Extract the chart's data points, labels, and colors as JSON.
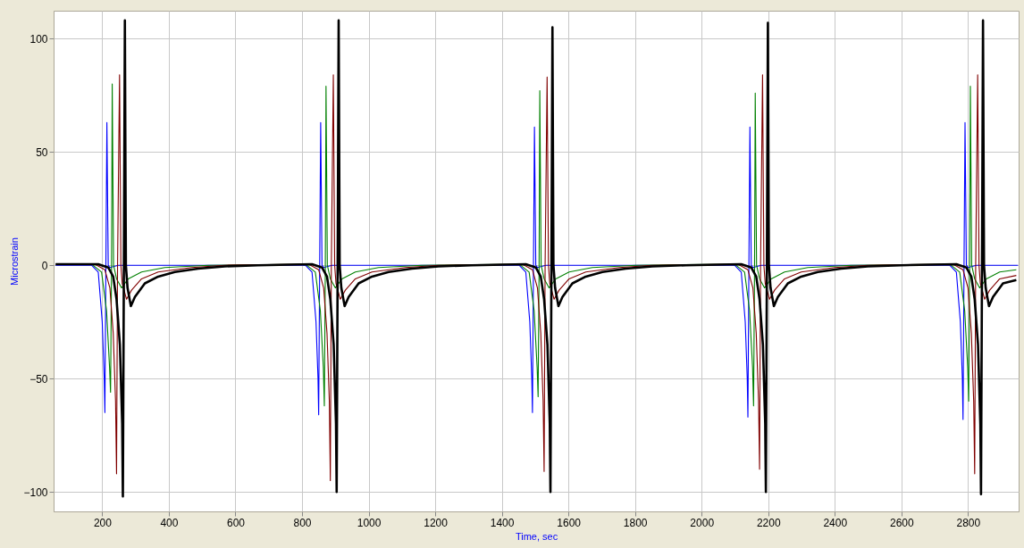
{
  "chart_data": {
    "type": "line",
    "xlabel": "Time, sec",
    "ylabel": "Microstrain",
    "xlim": [
      54,
      2952
    ],
    "ylim": [
      -108.6,
      112.3
    ],
    "xticks": [
      200,
      400,
      600,
      800,
      1000,
      1200,
      1400,
      1600,
      1800,
      2000,
      2200,
      2400,
      2600,
      2800
    ],
    "yticks": [
      -100,
      -50,
      0,
      50,
      100
    ],
    "grid": true,
    "marker": "none",
    "line_style": "solid",
    "series": [
      {
        "color": "#0000ff",
        "x": [
          60,
          168,
          188,
          200,
          206,
          208,
          211,
          214,
          218,
          223,
          248,
          810,
          830,
          842,
          848,
          850,
          853,
          856,
          860,
          865,
          890,
          1452,
          1472,
          1484,
          1490,
          1492,
          1495,
          1498,
          1502,
          1507,
          1532,
          2099,
          2119,
          2131,
          2137,
          2139,
          2142,
          2145,
          2149,
          2154,
          2179,
          2745,
          2765,
          2777,
          2783,
          2785,
          2788,
          2791,
          2795,
          2800,
          2825,
          2950
        ],
        "values": [
          0,
          0,
          -3,
          -25,
          -50,
          -65,
          0,
          63,
          0,
          -1,
          0,
          0,
          -3,
          -25,
          -50,
          -66,
          0,
          63,
          0,
          -1,
          0,
          0,
          -3,
          -25,
          -50,
          -65,
          0,
          61,
          0,
          -1,
          0,
          0,
          -3,
          -25,
          -50,
          -67,
          0,
          61,
          0,
          -1,
          0,
          0,
          -3,
          -25,
          -50,
          -68,
          0,
          63,
          0,
          -1,
          0,
          0
        ]
      },
      {
        "color": "#008000",
        "x": [
          60,
          168,
          198,
          213,
          222,
          225,
          228,
          230,
          234,
          243,
          258,
          278,
          318,
          388,
          518,
          810,
          840,
          855,
          864,
          867,
          870,
          872,
          876,
          885,
          900,
          920,
          960,
          1030,
          1160,
          1452,
          1482,
          1497,
          1506,
          1509,
          1512,
          1514,
          1518,
          1527,
          1542,
          1562,
          1602,
          1672,
          1802,
          2099,
          2129,
          2144,
          2153,
          2156,
          2159,
          2161,
          2165,
          2174,
          2189,
          2209,
          2249,
          2319,
          2449,
          2745,
          2775,
          2790,
          2799,
          2802,
          2805,
          2807,
          2811,
          2820,
          2835,
          2855,
          2895,
          2945
        ],
        "values": [
          0.5,
          0.5,
          -3,
          -20,
          -45,
          -56,
          0,
          80,
          0,
          -6,
          -10,
          -6,
          -3,
          -1,
          0,
          0.5,
          -3,
          -20,
          -45,
          -62,
          0,
          79,
          0,
          -6,
          -10,
          -6,
          -3,
          -1,
          0,
          0.5,
          -3,
          -20,
          -45,
          -58,
          0,
          77,
          0,
          -6,
          -10,
          -6,
          -3,
          -1,
          0,
          0.5,
          -3,
          -20,
          -45,
          -62,
          0,
          76,
          0,
          -6,
          -10,
          -6,
          -3,
          -1,
          0,
          0.5,
          -3,
          -20,
          -45,
          -60,
          0,
          79,
          0,
          -6,
          -10,
          -6,
          -3,
          -2
        ]
      },
      {
        "color": "#800000",
        "x": [
          60,
          178,
          208,
          223,
          233,
          240,
          243,
          246,
          252,
          256,
          260,
          273,
          288,
          318,
          368,
          468,
          568,
          820,
          850,
          865,
          875,
          882,
          885,
          888,
          894,
          898,
          902,
          915,
          930,
          960,
          1010,
          1110,
          1210,
          1462,
          1492,
          1507,
          1517,
          1524,
          1527,
          1530,
          1536,
          1540,
          1544,
          1557,
          1572,
          1602,
          1652,
          1752,
          1852,
          2109,
          2139,
          2154,
          2164,
          2171,
          2174,
          2177,
          2183,
          2187,
          2191,
          2204,
          2219,
          2249,
          2299,
          2399,
          2499,
          2755,
          2785,
          2800,
          2810,
          2817,
          2820,
          2823,
          2829,
          2833,
          2837,
          2850,
          2865,
          2895,
          2945
        ],
        "values": [
          0.5,
          0.5,
          -2,
          -10,
          -30,
          -60,
          -92,
          0,
          84,
          0,
          -8,
          -15,
          -11,
          -6,
          -3,
          -1,
          0,
          0.5,
          -2,
          -10,
          -30,
          -60,
          -95,
          0,
          84,
          0,
          -8,
          -15,
          -11,
          -6,
          -3,
          -1,
          0,
          0.5,
          -2,
          -10,
          -30,
          -60,
          -91,
          0,
          83,
          0,
          -8,
          -15,
          -11,
          -6,
          -3,
          -1,
          0,
          0.5,
          -2,
          -10,
          -30,
          -60,
          -90,
          0,
          84,
          0,
          -8,
          -15,
          -11,
          -6,
          -3,
          -1,
          0,
          0.5,
          -2,
          -10,
          -30,
          -60,
          -92,
          0,
          84,
          0,
          -8,
          -15,
          -11,
          -6,
          -4.5
        ]
      },
      {
        "color": "#000000",
        "x": [
          60,
          188,
          218,
          233,
          243,
          253,
          260,
          262,
          265,
          268,
          271,
          276,
          286,
          298,
          328,
          368,
          418,
          488,
          568,
          668,
          830,
          860,
          875,
          885,
          895,
          902,
          904,
          907,
          910,
          913,
          918,
          928,
          940,
          970,
          1010,
          1060,
          1130,
          1210,
          1310,
          1472,
          1502,
          1517,
          1527,
          1537,
          1544,
          1546,
          1549,
          1552,
          1555,
          1560,
          1570,
          1582,
          1612,
          1652,
          1702,
          1772,
          1852,
          1952,
          2119,
          2149,
          2164,
          2174,
          2184,
          2191,
          2193,
          2196,
          2199,
          2202,
          2207,
          2217,
          2229,
          2259,
          2299,
          2349,
          2419,
          2499,
          2599,
          2765,
          2795,
          2810,
          2820,
          2830,
          2837,
          2839,
          2842,
          2845,
          2848,
          2853,
          2863,
          2875,
          2905,
          2945
        ],
        "values": [
          0.5,
          0.5,
          -1,
          -5,
          -15,
          -35,
          -70,
          -102,
          0,
          108,
          0,
          -10,
          -18,
          -14,
          -8,
          -5,
          -3,
          -1.5,
          -0.5,
          0,
          0.5,
          -1,
          -5,
          -15,
          -35,
          -70,
          -100,
          0,
          108,
          0,
          -10,
          -18,
          -14,
          -8,
          -5,
          -3,
          -1.5,
          -0.5,
          0,
          0.5,
          -1,
          -5,
          -15,
          -35,
          -70,
          -100,
          0,
          105,
          0,
          -10,
          -18,
          -14,
          -8,
          -5,
          -3,
          -1.5,
          -0.5,
          0,
          0.5,
          -1,
          -5,
          -15,
          -35,
          -70,
          -100,
          0,
          107,
          0,
          -10,
          -18,
          -14,
          -8,
          -5,
          -3,
          -1.5,
          -0.5,
          0,
          0.5,
          -1,
          -5,
          -15,
          -35,
          -70,
          -101,
          0,
          108,
          0,
          -10,
          -18,
          -14,
          -8,
          -6.5
        ]
      }
    ]
  }
}
